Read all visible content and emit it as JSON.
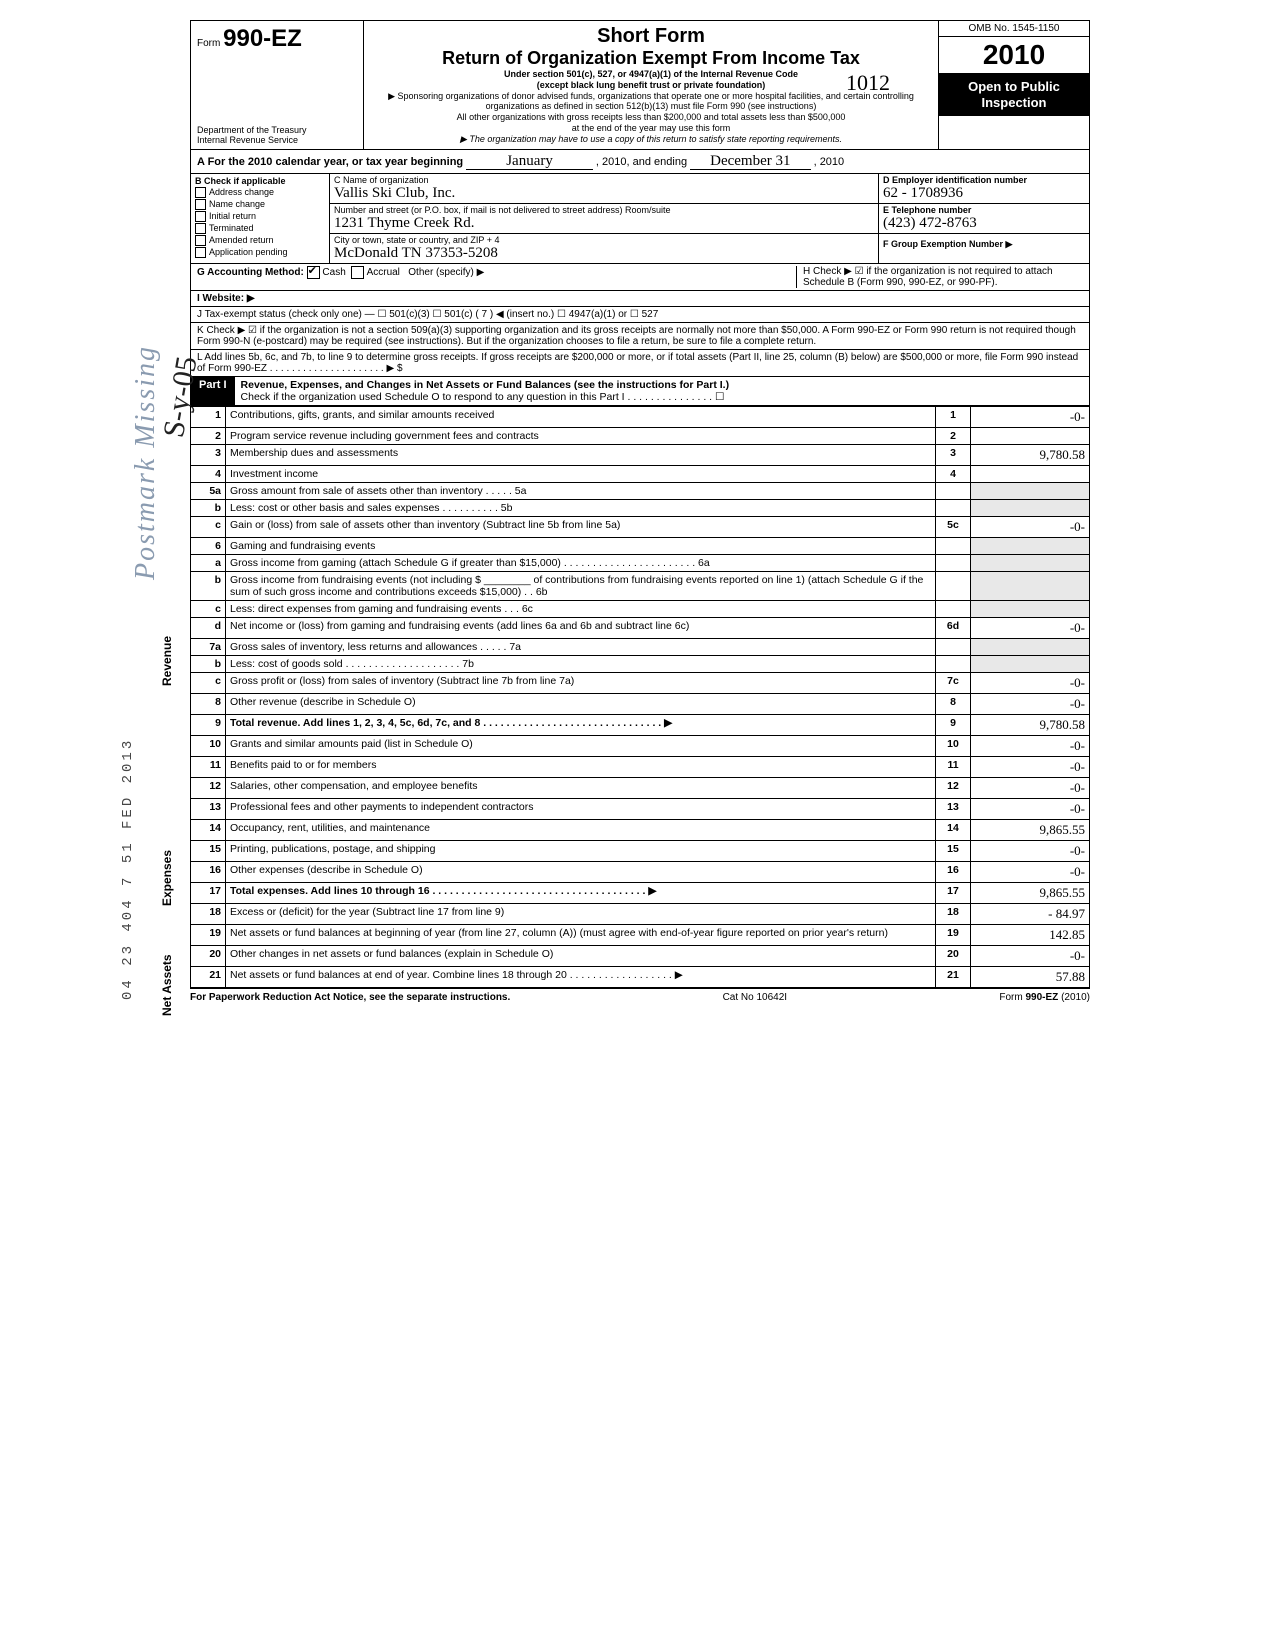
{
  "header": {
    "form_prefix": "Form",
    "form_number": "990-EZ",
    "dept": "Department of the Treasury",
    "irs": "Internal Revenue Service",
    "title1": "Short Form",
    "title2": "Return of Organization Exempt From Income Tax",
    "subtitle1": "Under section 501(c), 527, or 4947(a)(1) of the Internal Revenue Code",
    "subtitle2": "(except black lung benefit trust or private foundation)",
    "note1": "▶ Sponsoring organizations of donor advised funds, organizations that operate one or more hospital facilities, and certain controlling organizations as defined in section 512(b)(13) must file Form 990 (see instructions)",
    "note2": "All other organizations with gross receipts less than $200,000 and total assets less than $500,000",
    "note3": "at the end of the year may use this form",
    "note4": "▶ The organization may have to use a copy of this return to satisfy state reporting requirements.",
    "omb": "OMB No. 1545-1150",
    "year_prefix": "20",
    "year_suffix": "10",
    "open": "Open to Public Inspection",
    "hand_year_overlay": "1012"
  },
  "rowA": {
    "label": "A For the 2010 calendar year, or tax year beginning",
    "begin": "January",
    "mid": ", 2010, and ending",
    "end": "December 31",
    "end_year": ", 2010"
  },
  "colB": {
    "header": "B Check if applicable",
    "items": [
      "Address change",
      "Name change",
      "Initial return",
      "Terminated",
      "Amended return",
      "Application pending"
    ]
  },
  "colC": {
    "label_name": "C Name of organization",
    "name": "Vallis Ski Club, Inc.",
    "label_addr": "Number and street (or P.O. box, if mail is not delivered to street address)        Room/suite",
    "addr": "1231 Thyme Creek Rd.",
    "label_city": "City or town, state or country, and ZIP + 4",
    "city": "McDonald   TN   37353-5208"
  },
  "colRight": {
    "d_label": "D Employer identification number",
    "d_val": "62 - 1708936",
    "e_label": "E Telephone number",
    "e_val": "(423) 472-8763",
    "f_label": "F Group Exemption Number ▶",
    "f_val": ""
  },
  "lineG": {
    "label": "G Accounting Method:",
    "cash": "Cash",
    "accrual": "Accrual",
    "other": "Other (specify) ▶"
  },
  "lineH": {
    "text": "H Check ▶ ☑ if the organization is not required to attach Schedule B (Form 990, 990-EZ, or 990-PF)."
  },
  "lineI": {
    "label": "I  Website: ▶"
  },
  "lineJ": {
    "text": "J Tax-exempt status (check only one) — ☐ 501(c)(3)   ☐ 501(c) ( 7 ) ◀ (insert no.) ☐ 4947(a)(1) or   ☐ 527"
  },
  "lineK": {
    "text": "K Check ▶ ☑  if the organization is not a section 509(a)(3) supporting organization and its gross receipts are normally not more than $50,000. A Form 990-EZ or Form 990 return is not required though Form 990-N (e-postcard) may be required (see instructions). But if the organization chooses to file a return, be sure to file a complete return."
  },
  "lineL": {
    "text": "L Add lines 5b, 6c, and 7b, to line 9 to determine gross receipts. If gross receipts are $200,000 or more, or if total assets (Part II, line 25, column (B) below) are $500,000 or more, file Form 990 instead of Form 990-EZ  . . . . . . . . . . . . . . . . . . . . .  ▶ $"
  },
  "part1": {
    "label": "Part I",
    "title": "Revenue, Expenses, and Changes in Net Assets or Fund Balances (see the instructions for Part I.)",
    "sub": "Check if the organization used Schedule O to respond to any question in this Part I  . . . . . . . . . . . . . . . ☐"
  },
  "sideLabels": {
    "revenue": "Revenue",
    "expenses": "Expenses",
    "netassets": "Net Assets"
  },
  "rows": [
    {
      "n": "1",
      "d": "Contributions, gifts, grants, and similar amounts received",
      "box": "1",
      "amt": "-0-"
    },
    {
      "n": "2",
      "d": "Program service revenue including government fees and contracts",
      "box": "2",
      "amt": ""
    },
    {
      "n": "3",
      "d": "Membership dues and assessments",
      "box": "3",
      "amt": "9,780.58"
    },
    {
      "n": "4",
      "d": "Investment income",
      "box": "4",
      "amt": ""
    },
    {
      "n": "5a",
      "d": "Gross amount from sale of assets other than inventory . . . . .   5a",
      "box": "",
      "amt": ""
    },
    {
      "n": "b",
      "d": "Less: cost or other basis and sales expenses . . . . . . . . . .   5b",
      "box": "",
      "amt": ""
    },
    {
      "n": "c",
      "d": "Gain or (loss) from sale of assets other than inventory (Subtract line 5b from line 5a)",
      "box": "5c",
      "amt": "-0-"
    },
    {
      "n": "6",
      "d": "Gaming and fundraising events",
      "box": "",
      "amt": ""
    },
    {
      "n": "a",
      "d": "Gross income from gaming (attach Schedule G if greater than $15,000) . . . . . . . . . . . . . . . . . . . . . . .   6a",
      "box": "",
      "amt": ""
    },
    {
      "n": "b",
      "d": "Gross income from fundraising events (not including $ ________ of contributions from fundraising events reported on line 1) (attach Schedule G if the sum of such gross income and contributions exceeds $15,000) . .   6b",
      "box": "",
      "amt": ""
    },
    {
      "n": "c",
      "d": "Less: direct expenses from gaming and fundraising events . . .   6c",
      "box": "",
      "amt": ""
    },
    {
      "n": "d",
      "d": "Net income or (loss) from gaming and fundraising events (add lines 6a and 6b and subtract line 6c)",
      "box": "6d",
      "amt": "-0-"
    },
    {
      "n": "7a",
      "d": "Gross sales of inventory, less returns and allowances . . . . .   7a",
      "box": "",
      "amt": ""
    },
    {
      "n": "b",
      "d": "Less: cost of goods sold  . . . . . . . . . . . . . . . . . . . .   7b",
      "box": "",
      "amt": ""
    },
    {
      "n": "c",
      "d": "Gross profit or (loss) from sales of inventory (Subtract line 7b from line 7a)",
      "box": "7c",
      "amt": "-0-"
    },
    {
      "n": "8",
      "d": "Other revenue (describe in Schedule O)",
      "box": "8",
      "amt": "-0-"
    },
    {
      "n": "9",
      "d": "Total revenue. Add lines 1, 2, 3, 4, 5c, 6d, 7c, and 8  . . . . . . . . . . . . . . . . . . . . . . . . . . . . . . . ▶",
      "box": "9",
      "amt": "9,780.58",
      "bold": true
    },
    {
      "n": "10",
      "d": "Grants and similar amounts paid (list in Schedule O)",
      "box": "10",
      "amt": "-0-"
    },
    {
      "n": "11",
      "d": "Benefits paid to or for members",
      "box": "11",
      "amt": "-0-"
    },
    {
      "n": "12",
      "d": "Salaries, other compensation, and employee benefits",
      "box": "12",
      "amt": "-0-"
    },
    {
      "n": "13",
      "d": "Professional fees and other payments to independent contractors",
      "box": "13",
      "amt": "-0-"
    },
    {
      "n": "14",
      "d": "Occupancy, rent, utilities, and maintenance",
      "box": "14",
      "amt": "9,865.55"
    },
    {
      "n": "15",
      "d": "Printing, publications, postage, and shipping",
      "box": "15",
      "amt": "-0-"
    },
    {
      "n": "16",
      "d": "Other expenses (describe in Schedule O)",
      "box": "16",
      "amt": "-0-"
    },
    {
      "n": "17",
      "d": "Total expenses. Add lines 10 through 16  . . . . . . . . . . . . . . . . . . . . . . . . . . . . . . . . . . . . . ▶",
      "box": "17",
      "amt": "9,865.55",
      "bold": true
    },
    {
      "n": "18",
      "d": "Excess or (deficit) for the year (Subtract line 17 from line 9)",
      "box": "18",
      "amt": "- 84.97"
    },
    {
      "n": "19",
      "d": "Net assets or fund balances at beginning of year (from line 27, column (A)) (must agree with end-of-year figure reported on prior year's return)",
      "box": "19",
      "amt": "142.85"
    },
    {
      "n": "20",
      "d": "Other changes in net assets or fund balances (explain in Schedule O)",
      "box": "20",
      "amt": "-0-"
    },
    {
      "n": "21",
      "d": "Net assets or fund balances at end of year. Combine lines 18 through 20  . . . . . . . . . . . . . . . . . . ▶",
      "box": "21",
      "amt": "57.88"
    }
  ],
  "footer": {
    "left": "For Paperwork Reduction Act Notice, see the separate instructions.",
    "mid": "Cat No 10642I",
    "right": "Form 990-EZ (2010)"
  },
  "watermark": "Postmark Missing",
  "datestamp": "04 23 404 7 51 FED 2013",
  "sig": "S-y-05"
}
